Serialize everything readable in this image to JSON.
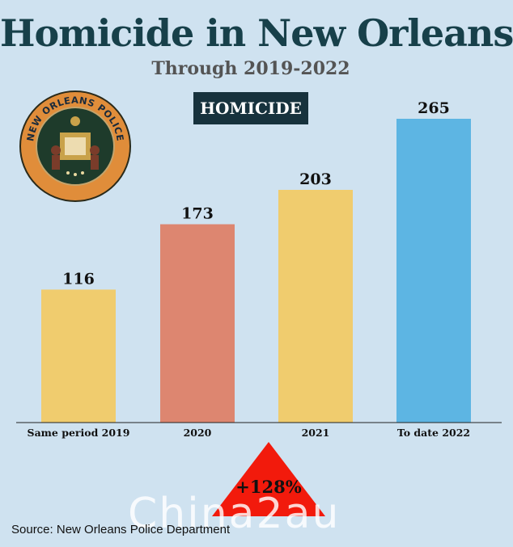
{
  "header": {
    "title": "Homicide in New Orleans",
    "subtitle": "Through 2019-2022",
    "badge": "HOMICIDE"
  },
  "logo": {
    "icon": "new-orleans-police-seal",
    "text": "NEW ORLEANS POLICE"
  },
  "chart_data": {
    "type": "bar",
    "title": "Homicide in New Orleans",
    "subtitle": "Through 2019-2022",
    "categories": [
      "Same period 2019",
      "2020",
      "2021",
      "To date 2022"
    ],
    "values": [
      116,
      173,
      203,
      265
    ],
    "colors": [
      "#f0cc6e",
      "#dd8670",
      "#f0cc6e",
      "#5db5e3"
    ],
    "ylim": [
      0,
      265
    ],
    "grid": false,
    "legend": "none"
  },
  "change": {
    "label": "+128%",
    "color": "#f21a0c"
  },
  "source": "Source: New Orleans Police Department",
  "watermark": "Chinа2au",
  "colors": {
    "background": "#cfe2f0",
    "title": "#17404a",
    "badge": "#17323d"
  }
}
